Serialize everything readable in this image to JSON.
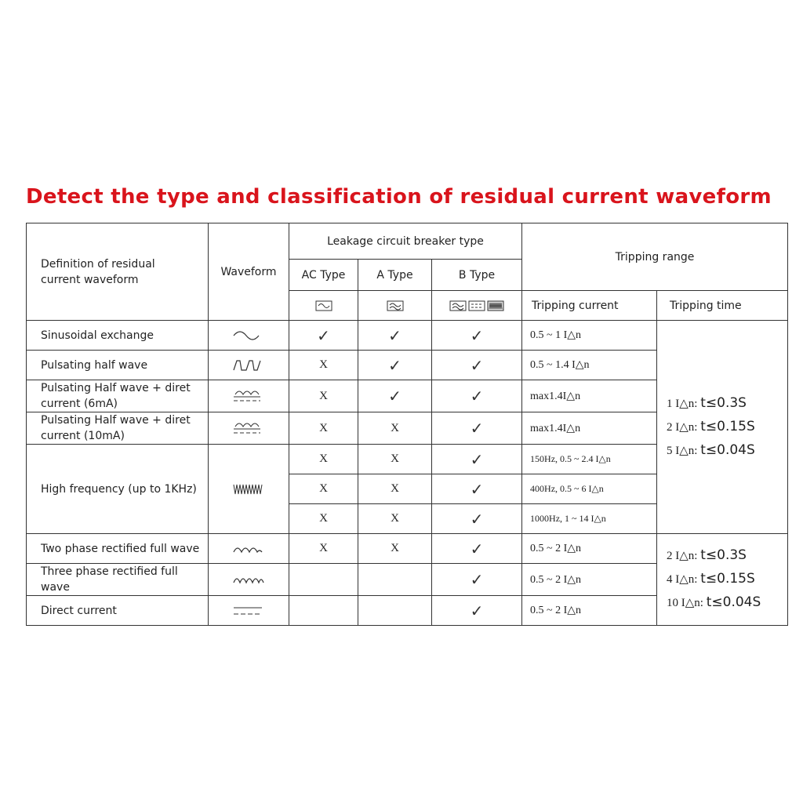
{
  "title": "Detect the type and classification of residual current waveform",
  "header": {
    "definition": "Definition of residual current waveform",
    "waveform": "Waveform",
    "leakage": "Leakage circuit breaker type",
    "ac": "AC Type",
    "a": "A Type",
    "b": "B Type",
    "tripping_range": "Tripping range",
    "tripping_current": "Tripping current",
    "tripping_time": "Tripping time"
  },
  "rows": [
    {
      "def": "Sinusoidal exchange",
      "wave": "sine",
      "ac": "✓",
      "a": "✓",
      "b": "✓",
      "current": "0.5 ~ 1 I△n"
    },
    {
      "def": "Pulsating half wave",
      "wave": "half-wave",
      "ac": "X",
      "a": "✓",
      "b": "✓",
      "current": "0.5 ~ 1.4 I△n"
    },
    {
      "def": "Pulsating Half wave + diret current (6mA)",
      "wave": "half-wave-dc",
      "ac": "X",
      "a": "✓",
      "b": "✓",
      "current": "max1.4I△n"
    },
    {
      "def": "Pulsating Half wave + diret current (10mA)",
      "wave": "half-wave-dc",
      "ac": "X",
      "a": "X",
      "b": "✓",
      "current": "max1.4I△n"
    },
    {
      "def": "High frequency (up to 1KHz)",
      "wave": "high-frequency",
      "ac": "X",
      "a": "X",
      "b": "✓",
      "current": "150Hz, 0.5 ~ 2.4 I△n"
    },
    {
      "ac": "X",
      "a": "X",
      "b": "✓",
      "current": "400Hz, 0.5 ~ 6 I△n"
    },
    {
      "ac": "X",
      "a": "X",
      "b": "✓",
      "current": "1000Hz, 1 ~ 14 I△n"
    },
    {
      "def": "Two phase rectified full wave",
      "wave": "two-phase",
      "ac": "X",
      "a": "X",
      "b": "✓",
      "current": "0.5 ~ 2 I△n"
    },
    {
      "def": "Three phase rectified full wave",
      "wave": "three-phase",
      "ac": "",
      "a": "",
      "b": "✓",
      "current": "0.5 ~ 2 I△n"
    },
    {
      "def": "Direct current",
      "wave": "dc",
      "ac": "",
      "a": "",
      "b": "✓",
      "current": "0.5 ~ 2 I△n"
    }
  ],
  "time_group1": [
    {
      "mult": "1 I△n:",
      "t": "t≤0.3S"
    },
    {
      "mult": "2 I△n:",
      "t": "t≤0.15S"
    },
    {
      "mult": "5 I△n:",
      "t": "t≤0.04S"
    }
  ],
  "time_group2": [
    {
      "mult": "2 I△n:",
      "t": "t≤0.3S"
    },
    {
      "mult": "4 I△n:",
      "t": "t≤0.15S"
    },
    {
      "mult": "10 I△n:",
      "t": "t≤0.04S"
    }
  ]
}
